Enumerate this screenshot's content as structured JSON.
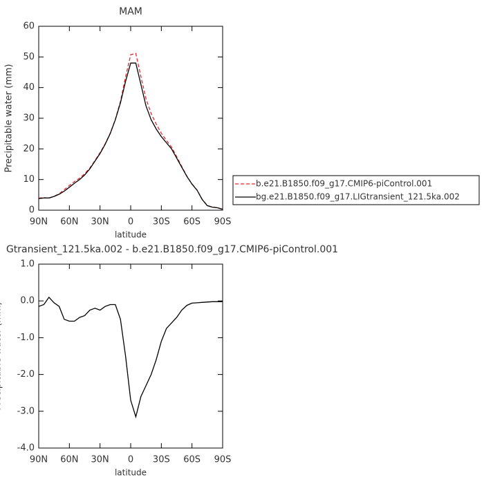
{
  "chart_data": [
    {
      "type": "line",
      "title": "MAM",
      "ylabel": "Precipitable water (mm)",
      "xlabel": "latitude",
      "x": [
        90,
        85,
        80,
        75,
        70,
        65,
        60,
        55,
        50,
        45,
        40,
        35,
        30,
        25,
        20,
        15,
        10,
        5,
        0,
        -5,
        -10,
        -15,
        -20,
        -25,
        -30,
        -35,
        -40,
        -45,
        -50,
        -55,
        -60,
        -65,
        -70,
        -75,
        -80,
        -85,
        -90
      ],
      "xlim": [
        90,
        -90
      ],
      "xticks": [
        {
          "value": 90,
          "label": "90N"
        },
        {
          "value": 60,
          "label": "60N"
        },
        {
          "value": 30,
          "label": "30N"
        },
        0,
        {
          "value": -30,
          "label": "30S"
        },
        {
          "value": -60,
          "label": "60S"
        },
        {
          "value": -90,
          "label": "90S"
        }
      ],
      "ylim": [
        0,
        60
      ],
      "yticks": [
        0,
        10,
        20,
        30,
        40,
        50,
        60
      ],
      "legend": "right",
      "series": [
        {
          "name": "b.e21.B1850.f09_g17.CMIP6-piControl.001",
          "color": "#e8262b",
          "dashed": true,
          "values": [
            3.95,
            4.1,
            3.9,
            4.55,
            5.35,
            6.7,
            8.05,
            9.35,
            10.45,
            11.9,
            13.75,
            16.2,
            18.75,
            21.65,
            25.1,
            29.6,
            35.5,
            43.5,
            50.7,
            51.15,
            43.6,
            36.3,
            31.5,
            28.1,
            25.1,
            22.75,
            20.6,
            17.45,
            14.25,
            11.12,
            8.56,
            6.55,
            3.54,
            1.53,
            1.02,
            0.82,
            0.32
          ]
        },
        {
          "name": "bg.e21.B1850.f09_g17.LIGtransient_121.5ka.002",
          "color": "#000000",
          "dashed": false,
          "values": [
            3.8,
            4.0,
            4.0,
            4.5,
            5.2,
            6.2,
            7.5,
            8.8,
            10,
            11.5,
            13.5,
            16,
            18.5,
            21.5,
            25,
            29.5,
            35,
            42,
            48,
            48,
            41,
            34,
            29.5,
            26.5,
            24,
            22,
            20,
            17,
            14,
            11,
            8.5,
            6.5,
            3.5,
            1.5,
            1.0,
            0.8,
            0.3
          ]
        }
      ]
    },
    {
      "type": "line",
      "title": "Gtransient_121.5ka.002 - b.e21.B1850.f09_g17.CMIP6-piControl.001",
      "ylabel": "Precipitable water (mm)",
      "xlabel": "latitude",
      "x": [
        90,
        85,
        80,
        75,
        70,
        65,
        60,
        55,
        50,
        45,
        40,
        35,
        30,
        25,
        20,
        15,
        10,
        5,
        0,
        -5,
        -10,
        -15,
        -20,
        -25,
        -30,
        -35,
        -40,
        -45,
        -50,
        -55,
        -60,
        -65,
        -70,
        -75,
        -80,
        -85,
        -90
      ],
      "xlim": [
        90,
        -90
      ],
      "xticks": [
        {
          "value": 90,
          "label": "90N"
        },
        {
          "value": 60,
          "label": "60N"
        },
        {
          "value": 30,
          "label": "30N"
        },
        0,
        {
          "value": -30,
          "label": "30S"
        },
        {
          "value": -60,
          "label": "60S"
        },
        {
          "value": -90,
          "label": "90S"
        }
      ],
      "ylim": [
        -4,
        1
      ],
      "yticks": [
        {
          "value": 1,
          "label": "1.0"
        },
        {
          "value": 0,
          "label": "0.0"
        },
        {
          "value": -1,
          "label": "-1.0"
        },
        {
          "value": -2,
          "label": "-2.0"
        },
        {
          "value": -3,
          "label": "-3.0"
        },
        {
          "value": -4,
          "label": "-4.0"
        }
      ],
      "color": "#000000",
      "values": [
        -0.15,
        -0.1,
        0.1,
        -0.05,
        -0.15,
        -0.5,
        -0.55,
        -0.55,
        -0.45,
        -0.4,
        -0.25,
        -0.2,
        -0.25,
        -0.15,
        -0.1,
        -0.1,
        -0.5,
        -1.5,
        -2.7,
        -3.15,
        -2.6,
        -2.3,
        -2.0,
        -1.6,
        -1.1,
        -0.75,
        -0.6,
        -0.45,
        -0.25,
        -0.12,
        -0.06,
        -0.05,
        -0.04,
        -0.03,
        -0.02,
        -0.02,
        -0.02
      ]
    }
  ]
}
